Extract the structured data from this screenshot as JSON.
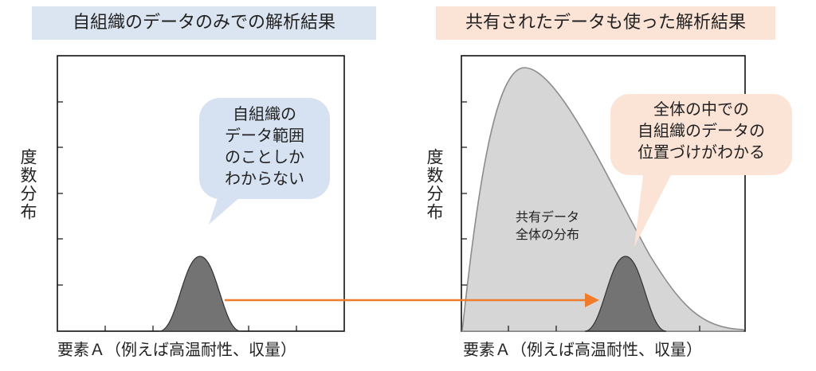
{
  "left_panel": {
    "title": "自組織のデータのみでの解析結果",
    "title_bg": "#dbe4f1",
    "y_label": "度数分布",
    "x_label": "要素Ａ（例えば高温耐性、収量）",
    "callout": {
      "lines": [
        "自組織の",
        "データ範囲",
        "のことしか",
        "わからない"
      ],
      "bg": "#d6e1f1"
    }
  },
  "right_panel": {
    "title": "共有されたデータも使った解析結果",
    "title_bg": "#fbe3d6",
    "y_label": "度数分布",
    "x_label": "要素Ａ（例えば高温耐性、収量）",
    "distribution_label": [
      "共有データ",
      "全体の分布"
    ],
    "callout": {
      "lines": [
        "全体の中での",
        "自組織のデータの",
        "位置づけがわかる"
      ],
      "bg": "#fbe3d6"
    }
  },
  "colors": {
    "arrow": "#f07b2a",
    "own_distribution": "#737373",
    "shared_distribution": "#d6d6d6",
    "shared_outline": "#8c8c8c"
  }
}
